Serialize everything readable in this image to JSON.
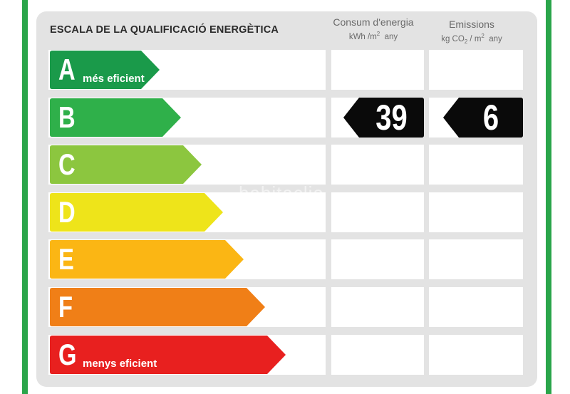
{
  "title": "ESCALA DE LA QUALIFICACIÓ ENERGÈTICA",
  "columns": {
    "consumption": {
      "label": "Consum d'energia",
      "unit_pre": "kWh /m",
      "unit_sup": "2",
      "unit_post": "any"
    },
    "emissions": {
      "label": "Emissions",
      "unit_pre": "kg CO",
      "unit_sub": "2",
      "unit_mid": " / m",
      "unit_sup": "2",
      "unit_post": "any"
    }
  },
  "ratings": [
    {
      "letter": "A",
      "note": "més eficient",
      "color": "#1a9a4a"
    },
    {
      "letter": "B",
      "note": "",
      "color": "#2fb04a"
    },
    {
      "letter": "C",
      "note": "",
      "color": "#8cc63f"
    },
    {
      "letter": "D",
      "note": "",
      "color": "#eee41a"
    },
    {
      "letter": "E",
      "note": "",
      "color": "#fbb614"
    },
    {
      "letter": "F",
      "note": "",
      "color": "#f07f17"
    },
    {
      "letter": "G",
      "note": "menys eficient",
      "color": "#e8201f"
    }
  ],
  "current": {
    "rating": "B",
    "consumption_value": "39",
    "emissions_value": "6"
  },
  "watermark": "habitaclia"
}
